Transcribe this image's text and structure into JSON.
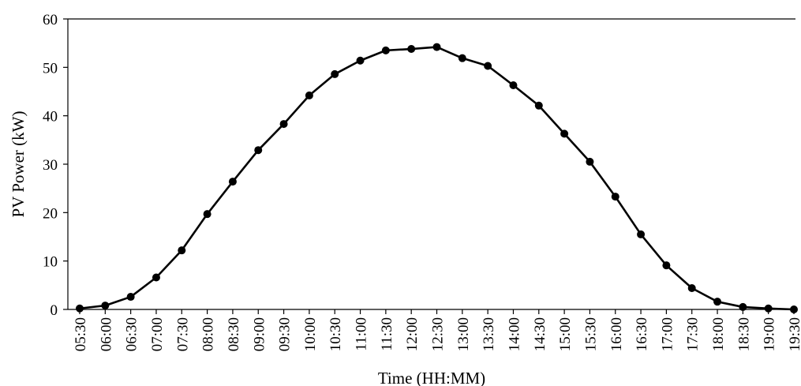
{
  "chart_data": {
    "type": "line",
    "title": "",
    "xlabel": "Time (HH:MM)",
    "ylabel": "PV Power (kW)",
    "ylim": [
      0,
      60
    ],
    "yticks": [
      0,
      10,
      20,
      30,
      40,
      50,
      60
    ],
    "grid": false,
    "legend": "none",
    "marker": "filled-circle",
    "line_color": "#000000",
    "categories": [
      "05:30",
      "06:00",
      "06:30",
      "07:00",
      "07:30",
      "08:00",
      "08:30",
      "09:00",
      "09:30",
      "10:00",
      "10:30",
      "11:00",
      "11:30",
      "12:00",
      "12:30",
      "13:00",
      "13:30",
      "14:00",
      "14:30",
      "15:00",
      "15:30",
      "16:00",
      "16:30",
      "17:00",
      "17:30",
      "18:00",
      "18:30",
      "19:00",
      "19:30"
    ],
    "series": [
      {
        "values": [
          0.2,
          0.8,
          2.6,
          6.6,
          12.2,
          19.7,
          26.4,
          32.9,
          38.3,
          44.2,
          48.6,
          51.4,
          53.5,
          53.8,
          54.2,
          51.9,
          50.3,
          46.3,
          42.1,
          36.3,
          30.5,
          23.3,
          15.5,
          9.1,
          4.4,
          1.6,
          0.5,
          0.2,
          0.0
        ]
      }
    ]
  }
}
